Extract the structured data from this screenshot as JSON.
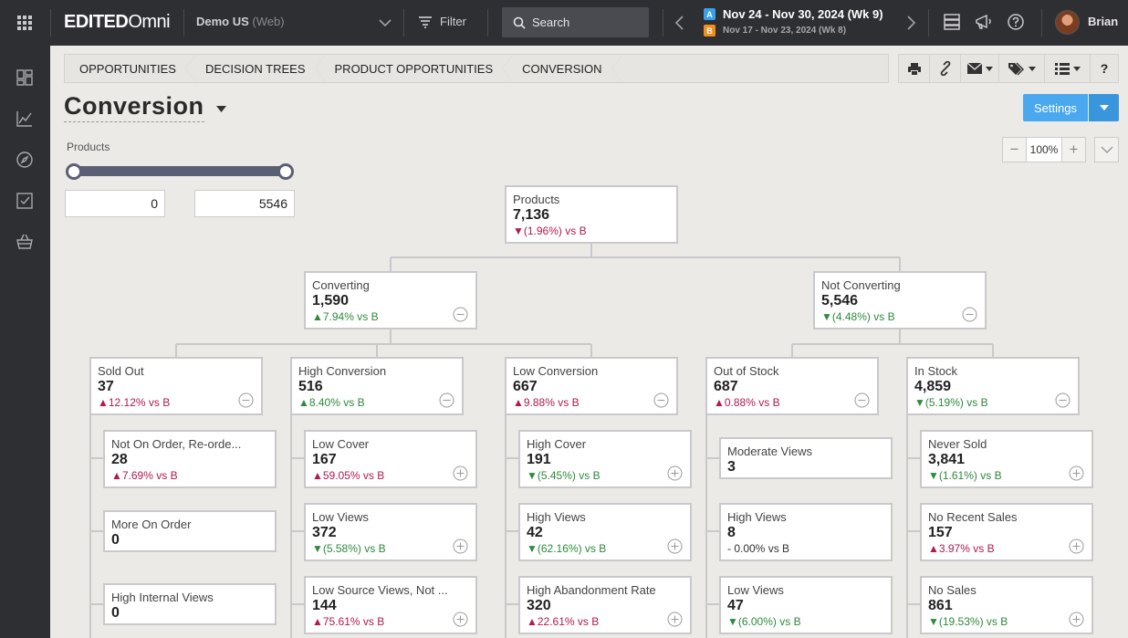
{
  "app": {
    "logo_left": "EDITED",
    "logo_right": "Omni",
    "account": "Demo US",
    "account_sub": "(Web)",
    "filter_label": "Filter",
    "search_placeholder": "Search",
    "period_a": "Nov 24 - Nov 30, 2024 (Wk 9)",
    "period_b": "Nov 17 - Nov 23, 2024 (Wk 8)",
    "badge_a": "A",
    "badge_b": "B",
    "user": "Brian"
  },
  "breadcrumb": [
    "OPPORTUNITIES",
    "DECISION TREES",
    "PRODUCT OPPORTUNITIES",
    "CONVERSION"
  ],
  "page": {
    "title": "Conversion",
    "settings_label": "Settings",
    "range_label": "Products",
    "range_min": "0",
    "range_max": "5546",
    "zoom_level": "100%",
    "zoom_minus": "−",
    "zoom_plus": "+"
  },
  "colors": {
    "increase": "#b31a4a",
    "decrease": "#2e8a3a",
    "accent": "#4aa8ee"
  },
  "tree": {
    "root": {
      "label": "Products",
      "value": "7,136",
      "delta": "▼(1.96%) vs B"
    },
    "converting": {
      "label": "Converting",
      "value": "1,590",
      "delta": "▲7.94% vs B"
    },
    "not_converting": {
      "label": "Not Converting",
      "value": "5,546",
      "delta": "▼(4.48%) vs B"
    },
    "sold_out": {
      "label": "Sold Out",
      "value": "37",
      "delta": "▲12.12% vs B"
    },
    "high_conversion": {
      "label": "High Conversion",
      "value": "516",
      "delta": "▲8.40% vs B"
    },
    "low_conversion": {
      "label": "Low Conversion",
      "value": "667",
      "delta": "▲9.88% vs B"
    },
    "out_of_stock": {
      "label": "Out of Stock",
      "value": "687",
      "delta": "▲0.88% vs B"
    },
    "in_stock": {
      "label": "In Stock",
      "value": "4,859",
      "delta": "▼(5.19%) vs B"
    },
    "not_on_order": {
      "label": "Not On Order, Re-orde...",
      "value": "28",
      "delta": "▲7.69% vs B"
    },
    "more_on_order": {
      "label": "More On Order",
      "value": "0"
    },
    "high_internal_views": {
      "label": "High Internal Views",
      "value": "0"
    },
    "low_cover": {
      "label": "Low Cover",
      "value": "167",
      "delta": "▲59.05% vs B"
    },
    "low_views": {
      "label": "Low Views",
      "value": "372",
      "delta": "▼(5.58%) vs B"
    },
    "low_source_views": {
      "label": "Low Source Views, Not ...",
      "value": "144",
      "delta": "▲75.61% vs B"
    },
    "high_cover": {
      "label": "High Cover",
      "value": "191",
      "delta": "▼(5.45%) vs B"
    },
    "high_views": {
      "label": "High Views",
      "value": "42",
      "delta": "▼(62.16%) vs B"
    },
    "high_abandonment": {
      "label": "High Abandonment Rate",
      "value": "320",
      "delta": "▲22.61% vs B"
    },
    "moderate_views": {
      "label": "Moderate Views",
      "value": "3"
    },
    "oos_high_views": {
      "label": "High Views",
      "value": "8",
      "delta": "- 0.00% vs B"
    },
    "oos_low_views": {
      "label": "Low Views",
      "value": "47",
      "delta": "▼(6.00%) vs B"
    },
    "never_sold": {
      "label": "Never Sold",
      "value": "3,841",
      "delta": "▼(1.61%) vs B"
    },
    "no_recent_sales": {
      "label": "No Recent Sales",
      "value": "157",
      "delta": "▲3.97% vs B"
    },
    "no_sales": {
      "label": "No Sales",
      "value": "861",
      "delta": "▼(19.53%) vs B"
    }
  }
}
